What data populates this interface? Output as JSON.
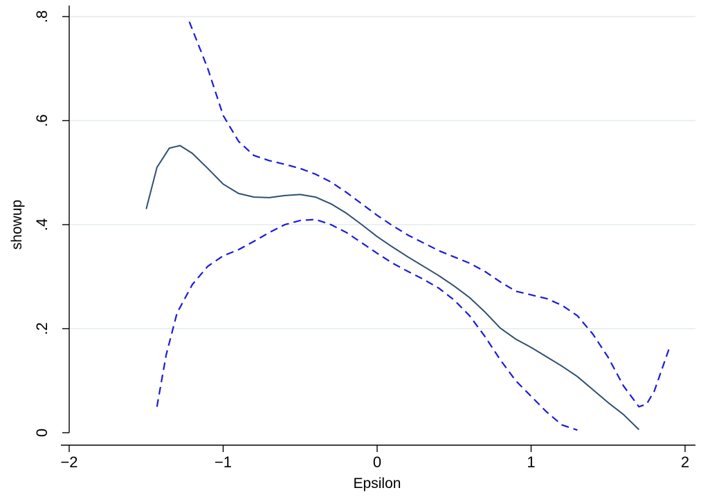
{
  "chart_data": {
    "type": "line",
    "xlabel": "Epsilon",
    "ylabel": "showup",
    "xlim": [
      -2,
      2
    ],
    "ylim": [
      0,
      0.8
    ],
    "x_ticks": [
      -2,
      -1,
      0,
      1,
      2
    ],
    "x_tick_labels": [
      "−2",
      "−1",
      "0",
      "1",
      "2"
    ],
    "y_ticks": [
      0,
      0.2,
      0.4,
      0.6,
      0.8
    ],
    "y_tick_labels": [
      "0",
      ".2",
      ".4",
      ".6",
      ".8"
    ],
    "grid": "horizontal",
    "legend": "none",
    "series": [
      {
        "style": "solid",
        "color": "#2f4f6f",
        "x": [
          -1.5,
          -1.43,
          -1.35,
          -1.28,
          -1.2,
          -1.1,
          -1.0,
          -0.9,
          -0.8,
          -0.7,
          -0.6,
          -0.5,
          -0.4,
          -0.3,
          -0.2,
          -0.1,
          0.0,
          0.1,
          0.2,
          0.3,
          0.4,
          0.5,
          0.6,
          0.7,
          0.8,
          0.9,
          1.0,
          1.1,
          1.2,
          1.3,
          1.4,
          1.5,
          1.6,
          1.7
        ],
        "y": [
          0.43,
          0.51,
          0.547,
          0.552,
          0.537,
          0.508,
          0.478,
          0.46,
          0.453,
          0.452,
          0.456,
          0.458,
          0.453,
          0.44,
          0.422,
          0.4,
          0.377,
          0.357,
          0.338,
          0.32,
          0.302,
          0.282,
          0.26,
          0.232,
          0.201,
          0.18,
          0.164,
          0.146,
          0.128,
          0.108,
          0.083,
          0.058,
          0.035,
          0.006
        ]
      },
      {
        "style": "dashed",
        "color": "#1a1adc",
        "x": [
          -1.22,
          -1.1,
          -1.0,
          -0.9,
          -0.8,
          -0.7,
          -0.6,
          -0.5,
          -0.4,
          -0.3,
          -0.2,
          -0.1,
          0.0,
          0.1,
          0.2,
          0.3,
          0.4,
          0.5,
          0.6,
          0.7,
          0.8,
          0.9,
          1.0,
          1.1,
          1.2,
          1.3,
          1.4,
          1.5,
          1.6,
          1.7,
          1.75,
          1.8,
          1.9
        ],
        "y": [
          0.79,
          0.7,
          0.61,
          0.56,
          0.533,
          0.523,
          0.516,
          0.508,
          0.497,
          0.482,
          0.462,
          0.44,
          0.418,
          0.398,
          0.38,
          0.365,
          0.35,
          0.338,
          0.326,
          0.31,
          0.29,
          0.272,
          0.265,
          0.258,
          0.245,
          0.225,
          0.19,
          0.145,
          0.09,
          0.05,
          0.055,
          0.08,
          0.165
        ]
      },
      {
        "style": "dashed",
        "color": "#1a1adc",
        "x": [
          -1.43,
          -1.37,
          -1.3,
          -1.2,
          -1.1,
          -1.0,
          -0.9,
          -0.8,
          -0.7,
          -0.6,
          -0.5,
          -0.4,
          -0.3,
          -0.2,
          -0.1,
          0.0,
          0.1,
          0.2,
          0.3,
          0.4,
          0.5,
          0.6,
          0.7,
          0.8,
          0.9,
          1.0,
          1.1,
          1.2,
          1.3
        ],
        "y": [
          0.05,
          0.15,
          0.23,
          0.285,
          0.32,
          0.34,
          0.352,
          0.368,
          0.385,
          0.4,
          0.408,
          0.41,
          0.4,
          0.385,
          0.365,
          0.345,
          0.326,
          0.31,
          0.295,
          0.278,
          0.255,
          0.225,
          0.185,
          0.14,
          0.1,
          0.07,
          0.04,
          0.015,
          0.005
        ]
      }
    ]
  }
}
